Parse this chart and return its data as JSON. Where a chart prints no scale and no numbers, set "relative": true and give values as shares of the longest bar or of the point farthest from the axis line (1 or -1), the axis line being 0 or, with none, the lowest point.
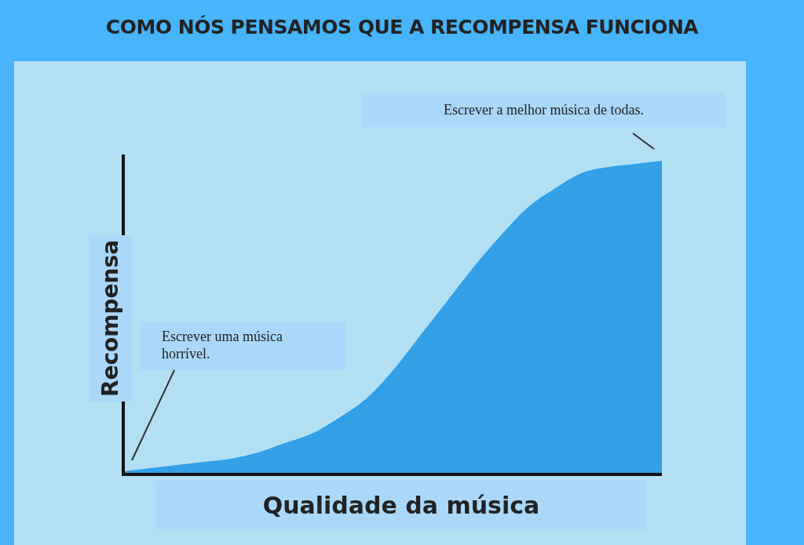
{
  "chart_data": {
    "type": "area",
    "title": "COMO NÓS PENSAMOS QUE A RECOMPENSA FUNCIONA",
    "xlabel": "Qualidade da música",
    "ylabel": "Recompensa",
    "relative": true,
    "color": "#33a0e8",
    "categories": [
      null,
      null,
      null,
      null,
      null,
      null,
      null,
      null,
      null,
      null,
      null,
      null,
      null,
      null,
      null,
      null,
      null,
      null,
      null,
      null,
      null
    ],
    "values": [
      0.01,
      0.02,
      0.03,
      0.04,
      0.05,
      0.07,
      0.1,
      0.13,
      0.18,
      0.24,
      0.33,
      0.44,
      0.55,
      0.66,
      0.76,
      0.85,
      0.91,
      0.96,
      0.98,
      0.99,
      1.0
    ],
    "annotations": [
      "Escrever uma música horrível.",
      "Escrever a melhor música de todas."
    ]
  }
}
